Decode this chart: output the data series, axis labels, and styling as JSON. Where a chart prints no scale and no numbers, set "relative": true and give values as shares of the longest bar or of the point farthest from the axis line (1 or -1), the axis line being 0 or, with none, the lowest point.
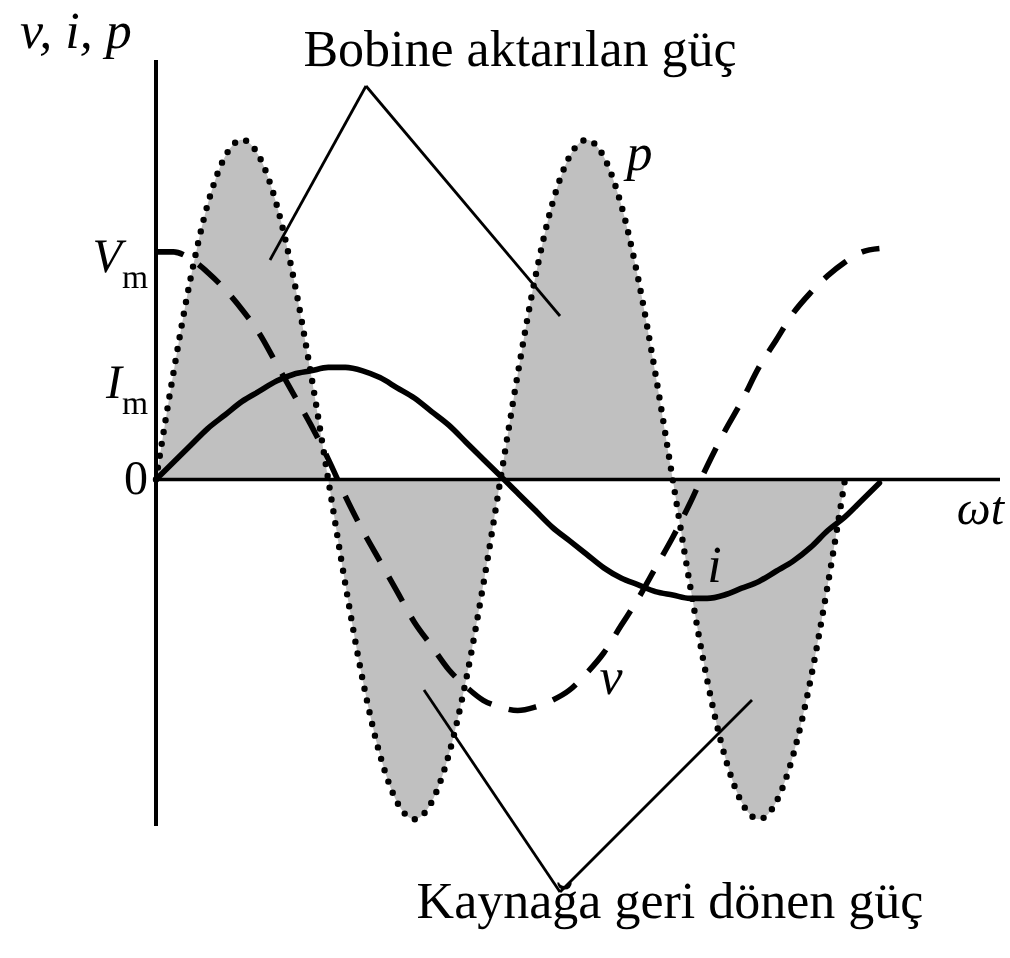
{
  "chart_data": {
    "type": "line",
    "relative": true,
    "xlabel": "ωt",
    "ylabel": "v, i, p",
    "categories": [
      null,
      null,
      null,
      null,
      null,
      null,
      null,
      null,
      null,
      null,
      null,
      null,
      null,
      null,
      null,
      null,
      null,
      null,
      null,
      null,
      null,
      null,
      null,
      null,
      null,
      null,
      null,
      null,
      null,
      null,
      null,
      null,
      null,
      null,
      null,
      null,
      null,
      null,
      null,
      null,
      null,
      null,
      null,
      null,
      null,
      null,
      null,
      null,
      null,
      null
    ],
    "series": [
      {
        "name": "p",
        "type": "area",
        "color": "#c0c0c0",
        "line_style": "dotted",
        "values": [
          0,
          0.31,
          0.59,
          0.81,
          0.95,
          1,
          0.95,
          0.81,
          0.59,
          0.31,
          0,
          -0.31,
          -0.59,
          -0.81,
          -0.95,
          -1,
          -0.95,
          -0.81,
          -0.59,
          -0.31,
          0,
          0.31,
          0.59,
          0.81,
          0.95,
          1,
          0.95,
          0.81,
          0.59,
          0.31,
          0,
          -0.31,
          -0.59,
          -0.81,
          -0.95,
          -1,
          -0.95,
          -0.81,
          -0.59,
          -0.31,
          0,
          null,
          null,
          null,
          null,
          null,
          null,
          null,
          null,
          null
        ]
      },
      {
        "name": "v",
        "color": "#000000",
        "line_style": "dashed",
        "values": [
          0.67,
          0.67,
          0.65,
          0.61,
          0.56,
          0.5,
          0.43,
          0.34,
          0.25,
          0.16,
          0.06,
          -0.05,
          -0.15,
          -0.24,
          -0.33,
          -0.42,
          -0.49,
          -0.56,
          -0.61,
          -0.65,
          -0.67,
          -0.68,
          -0.67,
          -0.65,
          -0.62,
          -0.57,
          -0.51,
          -0.43,
          -0.35,
          -0.26,
          -0.17,
          -0.07,
          0.04,
          0.14,
          0.23,
          0.33,
          0.41,
          0.49,
          0.55,
          0.6,
          0.64,
          0.67,
          0.68,
          null,
          null,
          null,
          null,
          null,
          null,
          null
        ]
      },
      {
        "name": "i",
        "color": "#000000",
        "line_style": "solid",
        "values": [
          0,
          0.05,
          0.1,
          0.15,
          0.19,
          0.23,
          0.26,
          0.29,
          0.31,
          0.32,
          0.33,
          0.33,
          0.32,
          0.3,
          0.27,
          0.24,
          0.2,
          0.16,
          0.11,
          0.06,
          0.01,
          -0.04,
          -0.09,
          -0.14,
          -0.18,
          -0.22,
          -0.26,
          -0.29,
          -0.31,
          -0.33,
          -0.34,
          -0.35,
          -0.35,
          -0.34,
          -0.32,
          -0.3,
          -0.27,
          -0.24,
          -0.2,
          -0.15,
          -0.11,
          -0.06,
          -0.01,
          null,
          null,
          null,
          null,
          null,
          null,
          null
        ]
      }
    ],
    "annotations": [
      "Bobine aktarılan güç",
      "Kaynağa geri dönen güç",
      "0",
      "V$_{m}$",
      "I$_{m}$"
    ]
  }
}
